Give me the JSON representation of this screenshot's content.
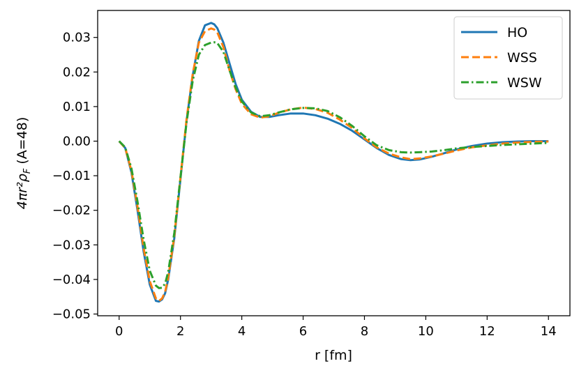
{
  "chart_data": {
    "type": "line",
    "xlabel": "r [fm]",
    "ylabel": "4πr²ρ",
    "ylabel_sub": "F",
    "ylabel_suffix": " (A=48)",
    "xlim": [
      -0.7,
      14.7
    ],
    "ylim": [
      -0.0505,
      0.0378
    ],
    "xticks": [
      0,
      2,
      4,
      6,
      8,
      10,
      12,
      14
    ],
    "xtick_labels": [
      "0",
      "2",
      "4",
      "6",
      "8",
      "10",
      "12",
      "14"
    ],
    "yticks": [
      -0.05,
      -0.04,
      -0.03,
      -0.02,
      -0.01,
      0.0,
      0.01,
      0.02,
      0.03
    ],
    "ytick_labels": [
      "−0.05",
      "−0.04",
      "−0.03",
      "−0.02",
      "−0.01",
      "0.00",
      "0.01",
      "0.02",
      "0.03"
    ],
    "grid": false,
    "legend_position": "top-right",
    "series": [
      {
        "name": "HO",
        "color": "#1f77b4",
        "style": "solid",
        "x": [
          0,
          0.2,
          0.4,
          0.6,
          0.8,
          1.0,
          1.2,
          1.3,
          1.4,
          1.5,
          1.6,
          1.8,
          2.0,
          2.2,
          2.4,
          2.6,
          2.8,
          3.0,
          3.1,
          3.2,
          3.4,
          3.6,
          3.8,
          4.0,
          4.3,
          4.6,
          4.9,
          5.2,
          5.6,
          6.0,
          6.4,
          6.8,
          7.2,
          7.6,
          8.0,
          8.4,
          8.8,
          9.2,
          9.5,
          9.8,
          10.2,
          10.6,
          11.0,
          11.5,
          12.0,
          12.5,
          13.0,
          13.5,
          14.0
        ],
        "y": [
          0.0,
          -0.002,
          -0.009,
          -0.02,
          -0.032,
          -0.0415,
          -0.0462,
          -0.0464,
          -0.0458,
          -0.044,
          -0.04,
          -0.028,
          -0.011,
          0.006,
          0.019,
          0.029,
          0.0335,
          0.0342,
          0.0338,
          0.0327,
          0.0285,
          0.0225,
          0.0165,
          0.012,
          0.0085,
          0.007,
          0.007,
          0.0075,
          0.008,
          0.008,
          0.0075,
          0.0065,
          0.005,
          0.003,
          0.0005,
          -0.002,
          -0.004,
          -0.0052,
          -0.0055,
          -0.0053,
          -0.0045,
          -0.0035,
          -0.0024,
          -0.0014,
          -0.0007,
          -0.0003,
          -0.0001,
          0.0,
          0.0
        ]
      },
      {
        "name": "WSS",
        "color": "#ff7f0e",
        "style": "dashed",
        "x": [
          0,
          0.2,
          0.4,
          0.6,
          0.8,
          1.0,
          1.2,
          1.3,
          1.4,
          1.5,
          1.6,
          1.8,
          2.0,
          2.2,
          2.4,
          2.6,
          2.8,
          3.0,
          3.1,
          3.2,
          3.4,
          3.6,
          3.8,
          4.0,
          4.3,
          4.6,
          4.9,
          5.2,
          5.6,
          6.0,
          6.4,
          6.8,
          7.2,
          7.6,
          8.0,
          8.4,
          8.8,
          9.2,
          9.5,
          9.8,
          10.2,
          10.6,
          11.0,
          11.5,
          12.0,
          12.5,
          13.0,
          13.5,
          14.0
        ],
        "y": [
          0.0,
          -0.002,
          -0.0085,
          -0.019,
          -0.031,
          -0.0405,
          -0.0455,
          -0.0462,
          -0.0455,
          -0.0436,
          -0.0395,
          -0.0275,
          -0.0105,
          0.0065,
          0.0195,
          0.0285,
          0.0318,
          0.0326,
          0.0323,
          0.0315,
          0.0272,
          0.0205,
          0.015,
          0.0108,
          0.0078,
          0.0068,
          0.0072,
          0.0082,
          0.0092,
          0.0097,
          0.0093,
          0.0082,
          0.0062,
          0.0038,
          0.0008,
          -0.0018,
          -0.0036,
          -0.0047,
          -0.0052,
          -0.005,
          -0.0044,
          -0.0036,
          -0.0027,
          -0.0018,
          -0.0012,
          -0.0007,
          -0.0004,
          -0.0002,
          -0.0001
        ]
      },
      {
        "name": "WSW",
        "color": "#2ca02c",
        "style": "dashdot",
        "x": [
          0,
          0.2,
          0.4,
          0.6,
          0.8,
          1.0,
          1.2,
          1.3,
          1.4,
          1.5,
          1.6,
          1.8,
          2.0,
          2.2,
          2.4,
          2.6,
          2.8,
          3.0,
          3.1,
          3.2,
          3.4,
          3.6,
          3.8,
          4.0,
          4.3,
          4.6,
          4.9,
          5.2,
          5.6,
          6.0,
          6.4,
          6.8,
          7.2,
          7.6,
          8.0,
          8.4,
          8.8,
          9.2,
          9.5,
          9.8,
          10.2,
          10.6,
          11.0,
          11.5,
          12.0,
          12.5,
          13.0,
          13.5,
          14.0
        ],
        "y": [
          0.0,
          -0.0018,
          -0.0078,
          -0.0175,
          -0.0285,
          -0.0375,
          -0.0418,
          -0.0425,
          -0.0424,
          -0.0412,
          -0.0378,
          -0.0265,
          -0.0105,
          0.0055,
          0.0175,
          0.025,
          0.0278,
          0.0285,
          0.0286,
          0.0284,
          0.0258,
          0.0205,
          0.0155,
          0.0115,
          0.0083,
          0.0072,
          0.0075,
          0.0083,
          0.0092,
          0.0096,
          0.0095,
          0.0087,
          0.0069,
          0.0044,
          0.0014,
          -0.0012,
          -0.0026,
          -0.0032,
          -0.0033,
          -0.0032,
          -0.003,
          -0.0026,
          -0.0021,
          -0.0017,
          -0.0014,
          -0.0011,
          -0.0009,
          -0.0007,
          -0.0005
        ]
      }
    ]
  }
}
